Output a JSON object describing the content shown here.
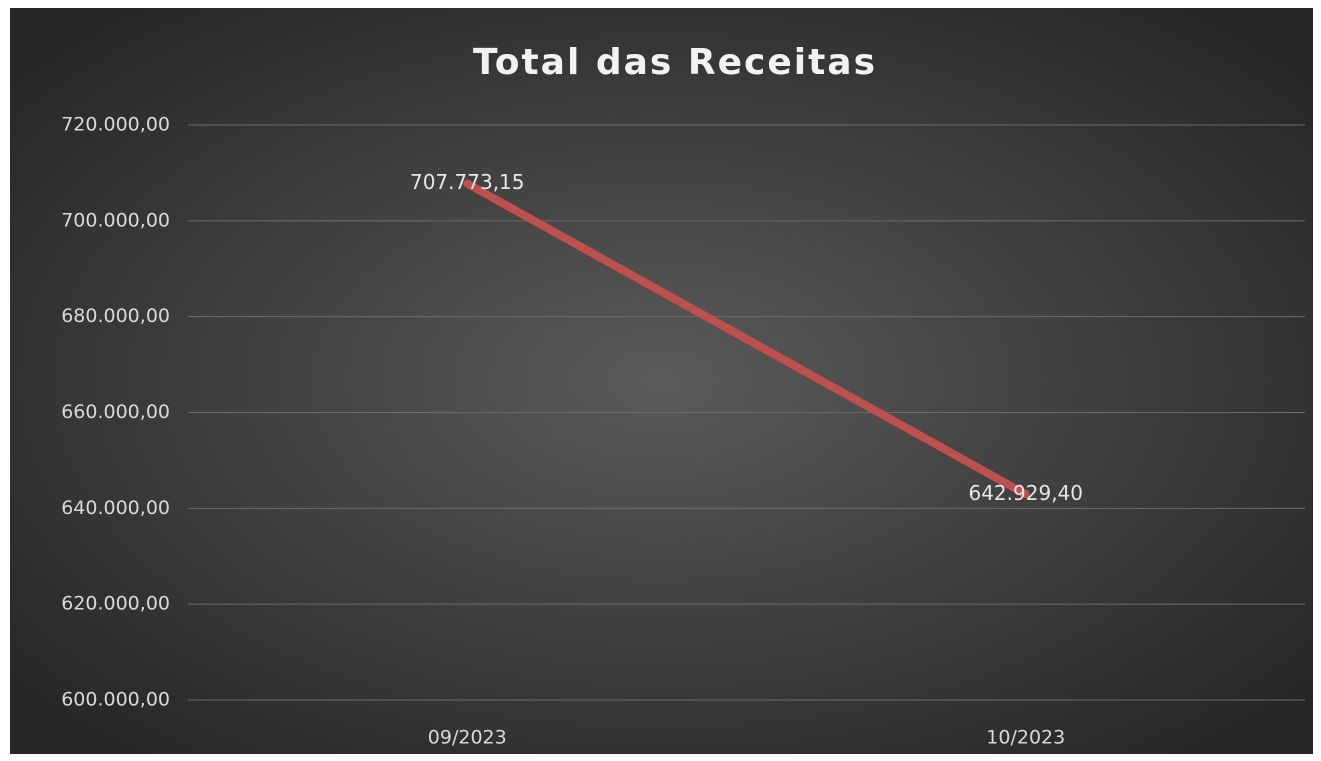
{
  "chart_data": {
    "type": "line",
    "title": "Total das Receitas",
    "categories": [
      "09/2023",
      "10/2023"
    ],
    "series": [
      {
        "name": "Total das Receitas",
        "color": "#c0504d",
        "values": [
          707773.15,
          642929.4
        ],
        "value_labels": [
          "707.773,15",
          "642.929,40"
        ]
      }
    ],
    "ylim": [
      600000,
      720000
    ],
    "yticks": [
      {
        "value": 600000,
        "label": "600.000,00"
      },
      {
        "value": 620000,
        "label": "620.000,00"
      },
      {
        "value": 640000,
        "label": "640.000,00"
      },
      {
        "value": 660000,
        "label": "660.000,00"
      },
      {
        "value": 680000,
        "label": "680.000,00"
      },
      {
        "value": 700000,
        "label": "700.000,00"
      },
      {
        "value": 720000,
        "label": "720.000,00"
      }
    ],
    "grid": true
  }
}
